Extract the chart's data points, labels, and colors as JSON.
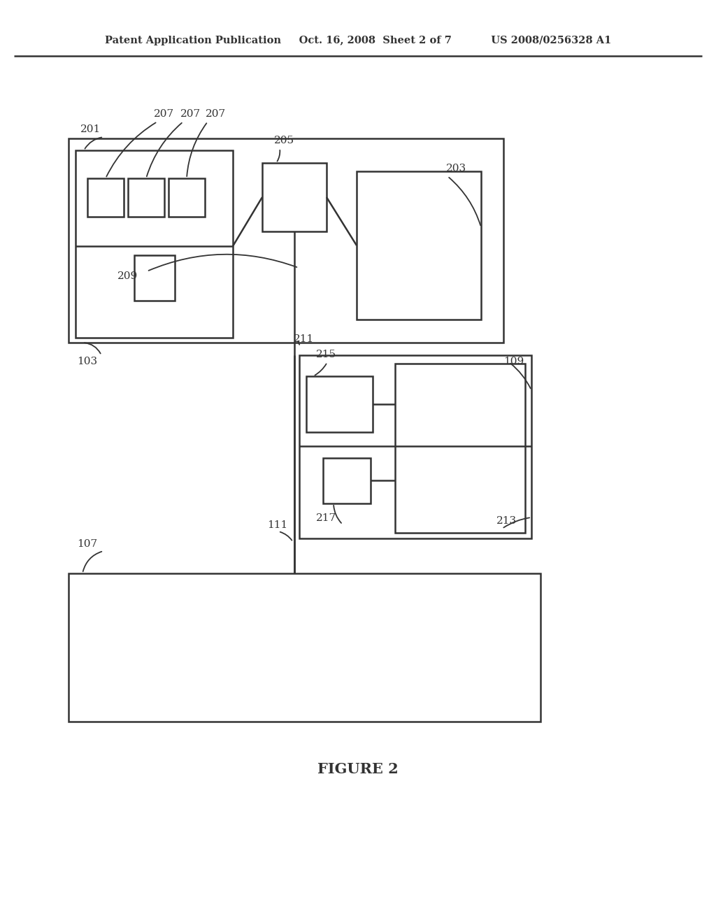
{
  "bg_color": "#ffffff",
  "line_color": "#333333",
  "header": "Patent Application Publication     Oct. 16, 2008  Sheet 2 of 7           US 2008/0256328 A1",
  "figure_label": "FIGURE 2",
  "lw": 1.8,
  "label_fs": 11,
  "header_fs": 10.5,
  "fig_label_fs": 15
}
